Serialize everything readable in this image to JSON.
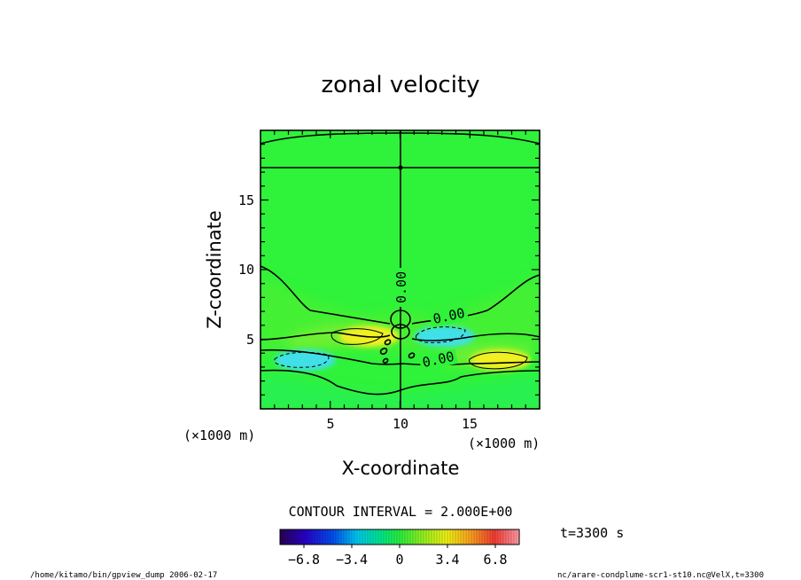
{
  "chart_data": {
    "type": "heatmap",
    "title": "zonal velocity",
    "xlabel": "X-coordinate",
    "ylabel": "Z-coordinate",
    "x_unit_label": "(×1000 m)",
    "y_unit_label": "(×1000 m)",
    "xlim": [
      0,
      20
    ],
    "ylim": [
      0,
      20
    ],
    "x_ticks": [
      "5",
      "10",
      "15"
    ],
    "y_ticks": [
      "5",
      "10",
      "15"
    ],
    "contour_interval_text": "CONTOUR INTERVAL = 2.000E+00",
    "contour_labels": [
      "0.00",
      "0.00",
      "0.00"
    ],
    "colorbar": {
      "min": -8.5,
      "max": 8.5,
      "tick_labels": [
        "−6.8",
        "−3.4",
        "0",
        "3.4",
        "6.8"
      ]
    },
    "features": [
      {
        "x": 3.2,
        "z": 3.5,
        "value": -3.5
      },
      {
        "x": 7.8,
        "z": 5.2,
        "value": 3.5
      },
      {
        "x": 13.2,
        "z": 5.2,
        "value": -3.3
      },
      {
        "x": 17.2,
        "z": 3.5,
        "value": 3.5
      }
    ],
    "time_label": "t=3300 s"
  },
  "footer": {
    "left": "/home/kitamo/bin/gpview_dump  2006-02-17",
    "right": "nc/arare-condplume-scr1-st10.nc@VelX,t=3300"
  },
  "colors": {
    "background_green": "#2ff23a",
    "positive": "#f0f020",
    "negative": "#40e0e8"
  }
}
